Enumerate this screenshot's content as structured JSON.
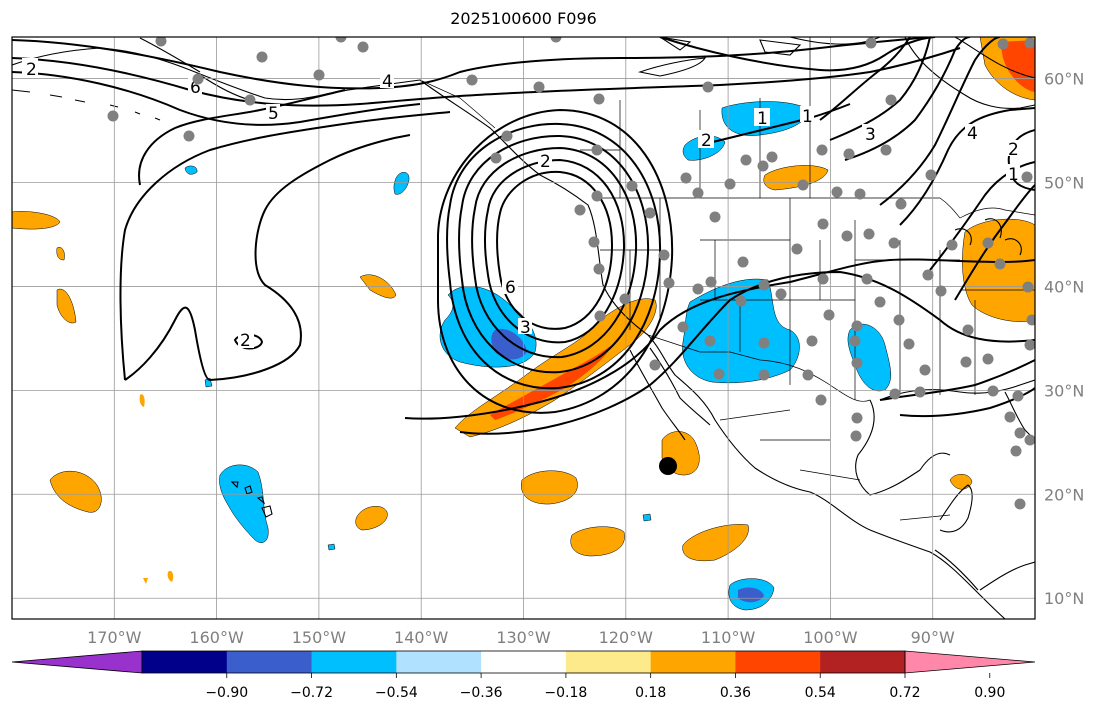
{
  "title": "2025100600 F096",
  "map_extent": {
    "lon_min": -180,
    "lon_max": -80,
    "lat_min": 8,
    "lat_max": 64
  },
  "lon_ticks": [
    {
      "lon": -170,
      "label": "170°W"
    },
    {
      "lon": -160,
      "label": "160°W"
    },
    {
      "lon": -150,
      "label": "150°W"
    },
    {
      "lon": -140,
      "label": "140°W"
    },
    {
      "lon": -130,
      "label": "130°W"
    },
    {
      "lon": -120,
      "label": "120°W"
    },
    {
      "lon": -110,
      "label": "110°W"
    },
    {
      "lon": -100,
      "label": "100°W"
    },
    {
      "lon": -90,
      "label": "90°W"
    }
  ],
  "lat_ticks": [
    {
      "lat": 10,
      "label": "10°N"
    },
    {
      "lat": 20,
      "label": "20°N"
    },
    {
      "lat": 30,
      "label": "30°N"
    },
    {
      "lat": 40,
      "label": "40°N"
    },
    {
      "lat": 50,
      "label": "50°N"
    },
    {
      "lat": 60,
      "label": "60°N"
    }
  ],
  "contour_labels": [
    "2",
    "6",
    "1",
    "5",
    "4",
    "1",
    "2",
    "3",
    "4",
    "1",
    "2",
    "2",
    "6",
    "3",
    "2"
  ],
  "colorbar": {
    "tick_labels": [
      "−0.90",
      "−0.72",
      "−0.54",
      "−0.36",
      "−0.18",
      "0.18",
      "0.36",
      "0.54",
      "0.72",
      "0.90"
    ],
    "colors": [
      "#9932cc",
      "#00008b",
      "#3a5fcd",
      "#00bfff",
      "#b0e2ff",
      "#ffffff",
      "#fdea8a",
      "#ffa500",
      "#ff4500",
      "#b22222",
      "#ff88aa"
    ],
    "extend": "both"
  },
  "colors": {
    "station_marker": "#808080",
    "highlight_marker": "#000000",
    "grid": "#9a9a9a"
  }
}
